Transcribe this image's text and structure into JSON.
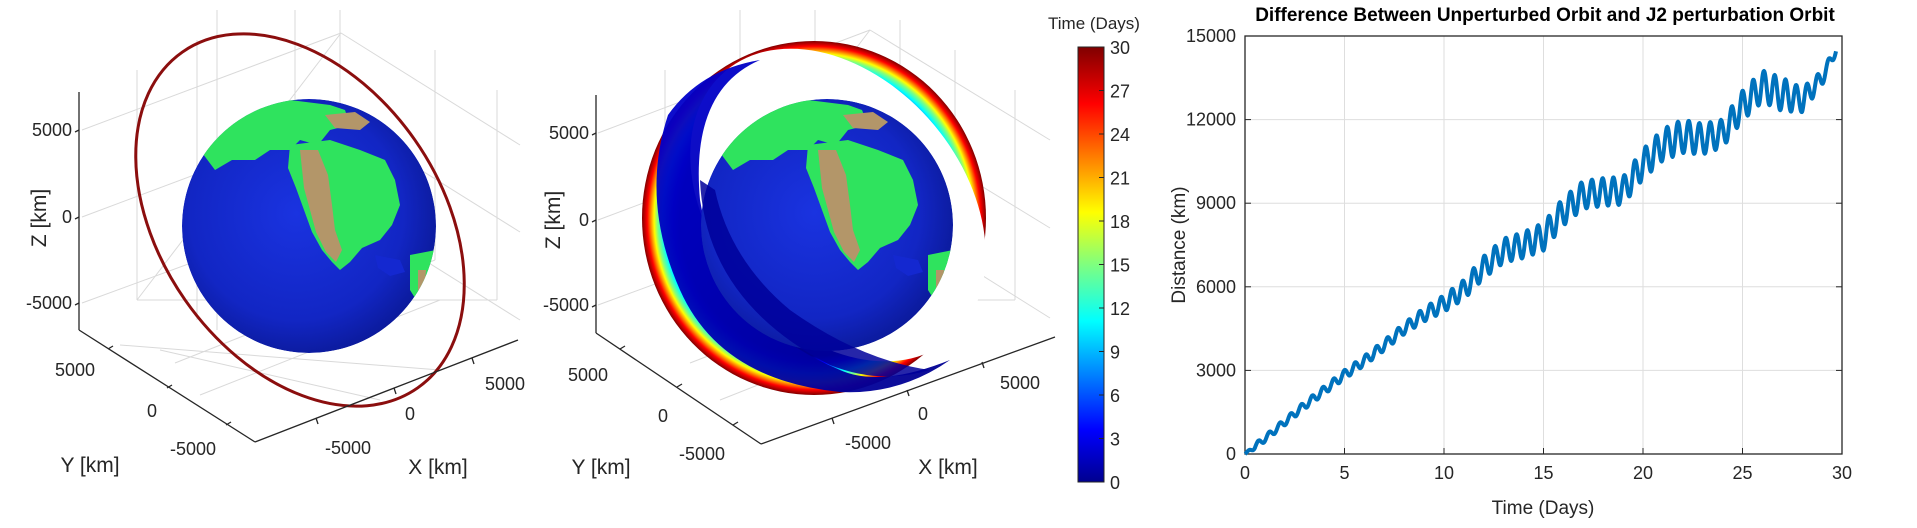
{
  "chart_data": [
    {
      "type": "scatter",
      "subtype": "3d-orbit",
      "title": "",
      "xlabel": "X [km]",
      "ylabel": "Y [km]",
      "zlabel": "Z [km]",
      "xticks": [
        "-5000",
        "0",
        "5000"
      ],
      "yticks": [
        "5000",
        "0",
        "-5000"
      ],
      "zticks": [
        "5000",
        "0",
        "-5000"
      ],
      "objects": [
        "Earth globe (textured: ocean blue, land green, terrain tan)",
        "Unperturbed orbit ring (dark red)"
      ],
      "orbit_color": "#8b0e0e",
      "grid": true
    },
    {
      "type": "scatter",
      "subtype": "3d-orbit-colored-by-time",
      "title": "",
      "xlabel": "X [km]",
      "ylabel": "Y [km]",
      "zlabel": "Z [km]",
      "xticks": [
        "-5000",
        "0",
        "5000"
      ],
      "yticks": [
        "5000",
        "0",
        "-5000"
      ],
      "zticks": [
        "5000",
        "0",
        "-5000"
      ],
      "objects": [
        "Earth globe",
        "J2-perturbed orbit band precessing over 30 days"
      ],
      "colorbar": {
        "label": "Time (Days)",
        "colormap": "jet",
        "range": [
          0,
          30
        ],
        "ticks": [
          0,
          3,
          6,
          9,
          12,
          15,
          18,
          21,
          24,
          27,
          30
        ]
      },
      "grid": true
    },
    {
      "type": "line",
      "title": "Difference Between Unperturbed Orbit and J2 perturbation Orbit",
      "xlabel": "Time (Days)",
      "ylabel": "Distance (km)",
      "xlim": [
        0,
        30
      ],
      "ylim": [
        0,
        15000
      ],
      "xticks": [
        0,
        5,
        10,
        15,
        20,
        25,
        30
      ],
      "yticks": [
        0,
        3000,
        6000,
        9000,
        12000,
        15000
      ],
      "grid": true,
      "line_color": "#0072bd",
      "series": [
        {
          "name": "Distance",
          "x": [
            0,
            1,
            2,
            3,
            4,
            5,
            6,
            7,
            8,
            9,
            10,
            11,
            12,
            13,
            14,
            15,
            16,
            17,
            18,
            19,
            20,
            21,
            22,
            23,
            24,
            25,
            26,
            27,
            28,
            29,
            29.7
          ],
          "y": [
            0,
            550,
            1150,
            1750,
            2300,
            2850,
            3350,
            3900,
            4500,
            5000,
            5400,
            5900,
            6700,
            7300,
            7500,
            7800,
            8700,
            9300,
            9400,
            9450,
            10400,
            11100,
            11400,
            11300,
            11500,
            12500,
            13200,
            12900,
            12700,
            13500,
            14500
          ]
        }
      ],
      "oscillation_amplitude_km": [
        [
          0,
          100
        ],
        [
          8,
          200
        ],
        [
          12,
          400
        ],
        [
          15,
          500
        ],
        [
          19,
          500
        ],
        [
          22,
          600
        ],
        [
          24,
          500
        ],
        [
          27,
          600
        ],
        [
          29.7,
          150
        ]
      ]
    }
  ],
  "panel1": {
    "zlabel": "Z [km]",
    "ylabel": "Y [km]",
    "xlabel": "X [km]",
    "zticks": [
      "5000",
      "0",
      "-5000"
    ],
    "yticks": [
      "5000",
      "0",
      "-5000"
    ],
    "xticks": [
      "-5000",
      "0",
      "5000"
    ]
  },
  "panel2": {
    "zlabel": "Z [km]",
    "ylabel": "Y [km]",
    "xlabel": "X [km]",
    "zticks": [
      "5000",
      "0",
      "-5000"
    ],
    "yticks": [
      "5000",
      "0",
      "-5000"
    ],
    "xticks": [
      "-5000",
      "0",
      "5000"
    ]
  },
  "colorbar": {
    "label": "Time (Days)",
    "ticks": [
      "30",
      "27",
      "24",
      "21",
      "18",
      "15",
      "12",
      "9",
      "6",
      "3",
      "0"
    ]
  },
  "panel3": {
    "title": "Difference Between Unperturbed Orbit and J2 perturbation Orbit",
    "xlabel": "Time (Days)",
    "ylabel": "Distance (km)",
    "yticks": [
      "15000",
      "12000",
      "9000",
      "6000",
      "3000",
      "0"
    ],
    "xticks": [
      "0",
      "5",
      "10",
      "15",
      "20",
      "25",
      "30"
    ]
  },
  "colors": {
    "ocean": "#1428d0",
    "ocean_deep": "#0c1aa6",
    "land": "#2fe35e",
    "terrain": "#b39669",
    "orbit": "#8b0e0e",
    "line": "#1a72b5",
    "grid": "#dedede",
    "axis": "#333333"
  }
}
